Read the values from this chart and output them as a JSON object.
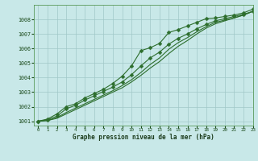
{
  "xlabel": "Graphe pression niveau de la mer (hPa)",
  "xlim": [
    -0.5,
    23
  ],
  "ylim": [
    1000.7,
    1009.0
  ],
  "yticks": [
    1001,
    1002,
    1003,
    1004,
    1005,
    1006,
    1007,
    1008
  ],
  "xticks": [
    0,
    1,
    2,
    3,
    4,
    5,
    6,
    7,
    8,
    9,
    10,
    11,
    12,
    13,
    14,
    15,
    16,
    17,
    18,
    19,
    20,
    21,
    22,
    23
  ],
  "bg_color": "#c8e8e8",
  "grid_color": "#a0c8c8",
  "line_color": "#2d6e2d",
  "series": [
    [
      1001.0,
      1001.15,
      1001.5,
      1002.0,
      1002.2,
      1002.6,
      1002.9,
      1003.2,
      1003.6,
      1004.1,
      1004.8,
      1005.85,
      1006.05,
      1006.35,
      1007.1,
      1007.3,
      1007.55,
      1007.8,
      1008.05,
      1008.1,
      1008.2,
      1008.3,
      1008.45,
      1008.7
    ],
    [
      1001.0,
      1001.1,
      1001.35,
      1001.85,
      1002.1,
      1002.45,
      1002.75,
      1003.05,
      1003.35,
      1003.7,
      1004.2,
      1004.8,
      1005.35,
      1005.75,
      1006.3,
      1006.7,
      1007.0,
      1007.35,
      1007.65,
      1007.9,
      1008.05,
      1008.2,
      1008.35,
      1008.55
    ],
    [
      1001.0,
      1001.05,
      1001.25,
      1001.6,
      1001.9,
      1002.2,
      1002.5,
      1002.8,
      1003.1,
      1003.45,
      1003.85,
      1004.35,
      1004.9,
      1005.35,
      1005.95,
      1006.4,
      1006.75,
      1007.15,
      1007.5,
      1007.8,
      1007.95,
      1008.1,
      1008.3,
      1008.55
    ],
    [
      1001.0,
      1001.05,
      1001.2,
      1001.5,
      1001.8,
      1002.1,
      1002.4,
      1002.7,
      1003.0,
      1003.3,
      1003.7,
      1004.15,
      1004.65,
      1005.1,
      1005.65,
      1006.15,
      1006.55,
      1007.0,
      1007.4,
      1007.7,
      1007.9,
      1008.1,
      1008.3,
      1008.55
    ]
  ],
  "marker_series": [
    0,
    1
  ],
  "marker": "D",
  "marker_size": 2.5,
  "linewidth": 0.8
}
